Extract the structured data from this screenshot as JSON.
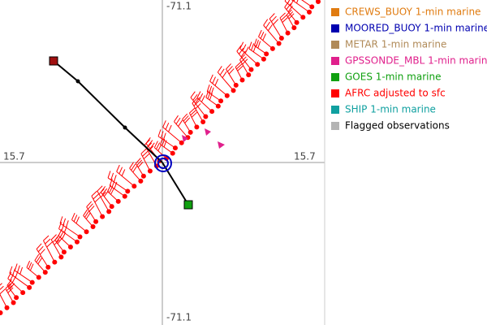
{
  "axis_labels": {
    "top": "-71.1",
    "bottom": "-71.1",
    "left": "15.7",
    "right": "15.7"
  },
  "legend": [
    {
      "label": "CREWS_BUOY 1-min marine",
      "color": "#e07b10"
    },
    {
      "label": "MOORED_BUOY 1-min marine",
      "color": "#0000b0"
    },
    {
      "label": "METAR 1-min marine",
      "color": "#b08a58"
    },
    {
      "label": "GPSSONDE_MBL 1-min marine",
      "color": "#e0208c"
    },
    {
      "label": "GOES 1-min marine",
      "color": "#10a010"
    },
    {
      "label": "AFRC adjusted to sfc",
      "color": "#ff0000"
    },
    {
      "label": "SHIP 1-min marine",
      "color": "#10a0a0"
    },
    {
      "label": "Flagged observations",
      "color": "#b4b4b4"
    }
  ]
}
